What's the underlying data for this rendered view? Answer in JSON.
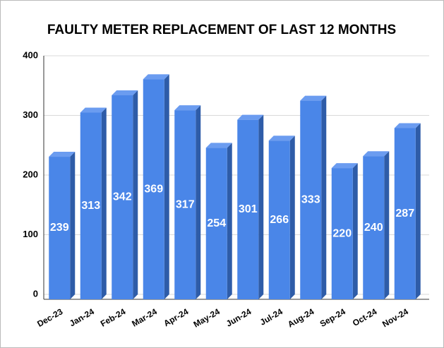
{
  "chart_data": {
    "type": "bar3d",
    "title": "FAULTY METER REPLACEMENT OF LAST 12 MONTHS",
    "categories": [
      "Dec-23",
      "Jan-24",
      "Feb-24",
      "Mar-24",
      "Apr-24",
      "May-24",
      "Jun-24",
      "Jul-24",
      "Aug-24",
      "Sep-24",
      "Oct-24",
      "Nov-24"
    ],
    "values": [
      239,
      313,
      342,
      369,
      317,
      254,
      301,
      266,
      333,
      220,
      240,
      287
    ],
    "color": "#4a86e8",
    "ylim": [
      0,
      400
    ],
    "yticks": [
      0,
      100,
      200,
      300,
      400
    ],
    "grid": true
  }
}
